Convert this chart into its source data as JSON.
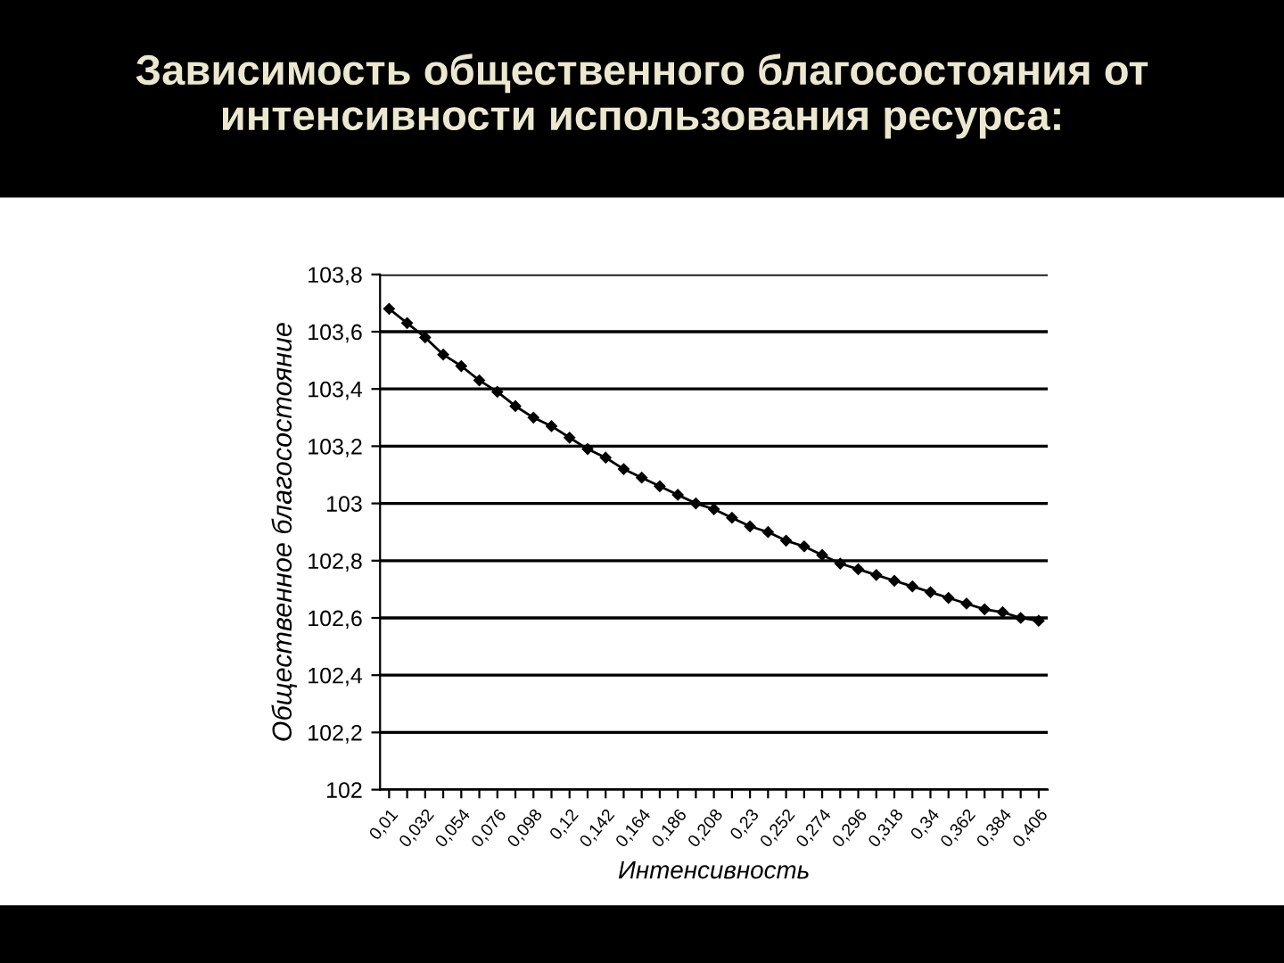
{
  "chart_data": {
    "type": "line",
    "title": "Зависимость общественного благосостояния от интенсивности использования ресурса:",
    "xlabel": "Интенсивность",
    "ylabel": "Общественное благосостояние",
    "categories": [
      "0,01",
      null,
      "0,032",
      null,
      "0,054",
      null,
      "0,076",
      null,
      "0,098",
      null,
      "0,12",
      null,
      "0,142",
      null,
      "0,164",
      null,
      "0,186",
      null,
      "0,208",
      null,
      "0,23",
      null,
      "0,252",
      null,
      "0,274",
      null,
      "0,296",
      null,
      "0,318",
      null,
      "0,34",
      null,
      "0,362",
      null,
      "0,384",
      null,
      "0,406"
    ],
    "series": [
      {
        "color": "#000000",
        "values": [
          103.68,
          103.63,
          103.58,
          103.52,
          103.48,
          103.43,
          103.39,
          103.34,
          103.3,
          103.27,
          103.23,
          103.19,
          103.16,
          103.12,
          103.09,
          103.06,
          103.03,
          103.0,
          102.98,
          102.95,
          102.92,
          102.9,
          102.87,
          102.85,
          102.82,
          102.79,
          102.77,
          102.75,
          102.73,
          102.71,
          102.69,
          102.67,
          102.65,
          102.63,
          102.62,
          102.6,
          102.59
        ]
      }
    ],
    "ylim": [
      102,
      103.8
    ],
    "yticks": [
      102,
      {
        "value": 102.2,
        "label": "102,2"
      },
      {
        "value": 102.4,
        "label": "102,4"
      },
      {
        "value": 102.6,
        "label": "102,6"
      },
      {
        "value": 102.8,
        "label": "102,8"
      },
      103,
      {
        "value": 103.2,
        "label": "103,2"
      },
      {
        "value": 103.4,
        "label": "103,4"
      },
      {
        "value": 103.6,
        "label": "103,6"
      },
      {
        "value": 103.8,
        "label": "103,8"
      }
    ],
    "grid": "y",
    "marker": "diamond",
    "line_style": "solid",
    "legend": false
  }
}
